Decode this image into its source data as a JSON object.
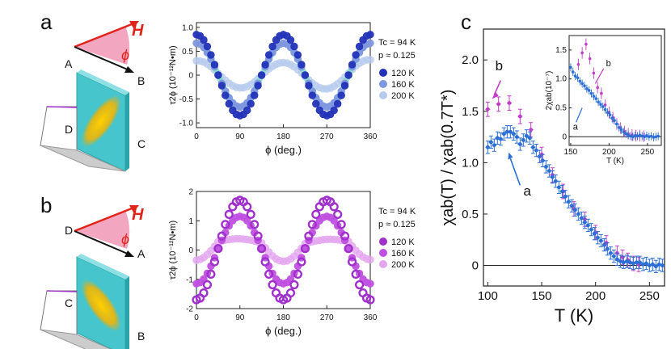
{
  "panel_labels": {
    "a": "a",
    "b": "b",
    "c": "c"
  },
  "schematic_a": {
    "field": "H",
    "angle": "ϕ",
    "corners": [
      "A",
      "B",
      "C",
      "D"
    ]
  },
  "schematic_b": {
    "field": "H",
    "angle": "ϕ",
    "corners": [
      "D",
      "A",
      "B",
      "C"
    ]
  },
  "colors": {
    "c120": "#2233b8",
    "c160": "#7f97df",
    "c200": "#b7cbee",
    "t160_fit": "#7fe0c6",
    "p120": "#a030cc",
    "p160": "#c050e0",
    "p200": "#e4a6ef",
    "blueC": "#2a6ed6",
    "pinkC": "#c03fc6",
    "field": "#e2231a",
    "wedge": "#f3a6bf",
    "crystal": "#46c6cc"
  },
  "chart_data": [
    {
      "id": "a",
      "type": "scatter",
      "xlabel": "ϕ (deg.)",
      "ylabel": "τ2ϕ (10⁻¹²N•m)",
      "xticks": [
        "0",
        "90",
        "180",
        "270",
        "360"
      ],
      "yticks": [
        "1.0",
        "0.5",
        "0",
        "-0.5",
        "-1.0"
      ],
      "xlim": [
        0,
        360
      ],
      "ylim": [
        -1.1,
        1.1
      ],
      "annotation": {
        "tc": "Tc = 94 K",
        "p": "p ≈ 0.125"
      },
      "series": [
        {
          "name": "120 K",
          "amp": 0.85,
          "phase": 0
        },
        {
          "name": "160 K",
          "amp": 0.67,
          "phase": 0
        },
        {
          "name": "200 K",
          "amp": 0.3,
          "phase": 0
        }
      ]
    },
    {
      "id": "b",
      "type": "scatter",
      "xlabel": "ϕ (deg.)",
      "ylabel": "τ2ϕ (10⁻¹²N•m)",
      "xticks": [
        "0",
        "90",
        "180",
        "270",
        "360"
      ],
      "yticks": [
        "2",
        "1",
        "0",
        "-1",
        "-2"
      ],
      "xlim": [
        0,
        360
      ],
      "ylim": [
        -2,
        2
      ],
      "annotation": {
        "tc": "Tc = 94 K",
        "p": "p ≈ 0.125"
      },
      "series": [
        {
          "name": "120 K",
          "amp": 1.7,
          "offset": 0.05
        },
        {
          "name": "160 K",
          "amp": 1.15,
          "offset": 0.05
        },
        {
          "name": "200 K",
          "amp": 0.35,
          "offset": 0.25
        }
      ]
    },
    {
      "id": "c",
      "type": "scatter",
      "xlabel": "T (K)",
      "ylabel": "χab(T) / χab(0.7T*)",
      "xticks": [
        "100",
        "150",
        "200",
        "250"
      ],
      "yticks": [
        "0",
        "0.5",
        "1.0",
        "1.5",
        "2.0"
      ],
      "xlim": [
        96,
        264
      ],
      "ylim": [
        -0.2,
        2.3
      ],
      "series": [
        {
          "name": "a",
          "x": [
            100,
            103,
            106,
            109,
            112,
            115,
            118,
            121,
            124,
            127,
            130,
            133,
            136,
            139,
            142,
            145,
            148,
            151,
            154,
            157,
            160,
            163,
            166,
            169,
            172,
            175,
            178,
            181,
            184,
            187,
            190,
            193,
            196,
            199,
            202,
            205,
            208,
            211,
            214,
            217,
            220,
            223,
            226,
            229,
            232,
            235,
            238,
            241,
            244,
            247,
            250,
            253,
            256,
            259,
            262
          ],
          "y": [
            1.15,
            1.2,
            1.17,
            1.24,
            1.23,
            1.28,
            1.3,
            1.3,
            1.28,
            1.25,
            1.18,
            1.22,
            1.26,
            1.24,
            1.15,
            1.12,
            1.06,
            1.02,
            0.96,
            0.92,
            0.86,
            0.82,
            0.76,
            0.72,
            0.67,
            0.62,
            0.58,
            0.54,
            0.5,
            0.46,
            0.42,
            0.39,
            0.35,
            0.31,
            0.27,
            0.24,
            0.2,
            0.16,
            0.12,
            0.09,
            0.06,
            0.04,
            0.03,
            0.04,
            0.03,
            0.02,
            0.03,
            0.03,
            0.01,
            0.02,
            0.0,
            0.01,
            -0.01,
            0.01,
            0.0
          ]
        },
        {
          "name": "b",
          "x": [
            100,
            110,
            120,
            130,
            140,
            150,
            160,
            170,
            180,
            190,
            200,
            210,
            220,
            225,
            230,
            235,
            240
          ],
          "y": [
            1.52,
            1.57,
            1.58,
            1.45,
            1.32,
            1.08,
            0.88,
            0.72,
            0.55,
            0.45,
            0.32,
            0.22,
            0.12,
            0.08,
            0.05,
            0.02,
            0.01
          ]
        }
      ],
      "inset": {
        "xlabel": "T (K)",
        "ylabel": "2χab(10⁻⁷)",
        "xticks": [
          "150",
          "200",
          "250"
        ],
        "yticks": [
          "0",
          "0.5",
          "1.0",
          "1.5"
        ],
        "xlim": [
          148,
          268
        ],
        "ylim": [
          -0.15,
          1.75
        ],
        "labels": {
          "a": "a",
          "b": "b"
        },
        "series": [
          {
            "name": "a",
            "x": [
              150,
              153,
              156,
              159,
              162,
              165,
              168,
              171,
              174,
              177,
              180,
              183,
              186,
              189,
              192,
              195,
              198,
              201,
              204,
              207,
              210,
              213,
              216,
              219,
              222,
              225,
              228,
              231,
              234,
              237,
              240,
              243,
              246,
              249,
              252,
              255,
              258,
              261,
              264
            ],
            "y": [
              1.2,
              1.12,
              1.05,
              1.02,
              0.96,
              0.92,
              0.88,
              0.83,
              0.8,
              0.75,
              0.7,
              0.66,
              0.6,
              0.56,
              0.52,
              0.47,
              0.42,
              0.38,
              0.32,
              0.28,
              0.22,
              0.16,
              0.12,
              0.08,
              0.05,
              0.03,
              0.01,
              0.0,
              0.02,
              0.01,
              0.03,
              0.01,
              0.0,
              0.02,
              0.0,
              0.01,
              -0.01,
              0.0,
              0.01
            ]
          },
          {
            "name": "b",
            "x": [
              160,
              165,
              170,
              175,
              180,
              185,
              190,
              195,
              200,
              205,
              210,
              215,
              220,
              225,
              230,
              235,
              240,
              245
            ],
            "y": [
              1.25,
              1.45,
              1.6,
              1.35,
              1.1,
              0.85,
              0.75,
              0.55,
              0.42,
              0.33,
              0.22,
              0.15,
              0.09,
              0.05,
              0.03,
              0.02,
              0.02,
              0.01
            ]
          }
        ]
      }
    }
  ]
}
